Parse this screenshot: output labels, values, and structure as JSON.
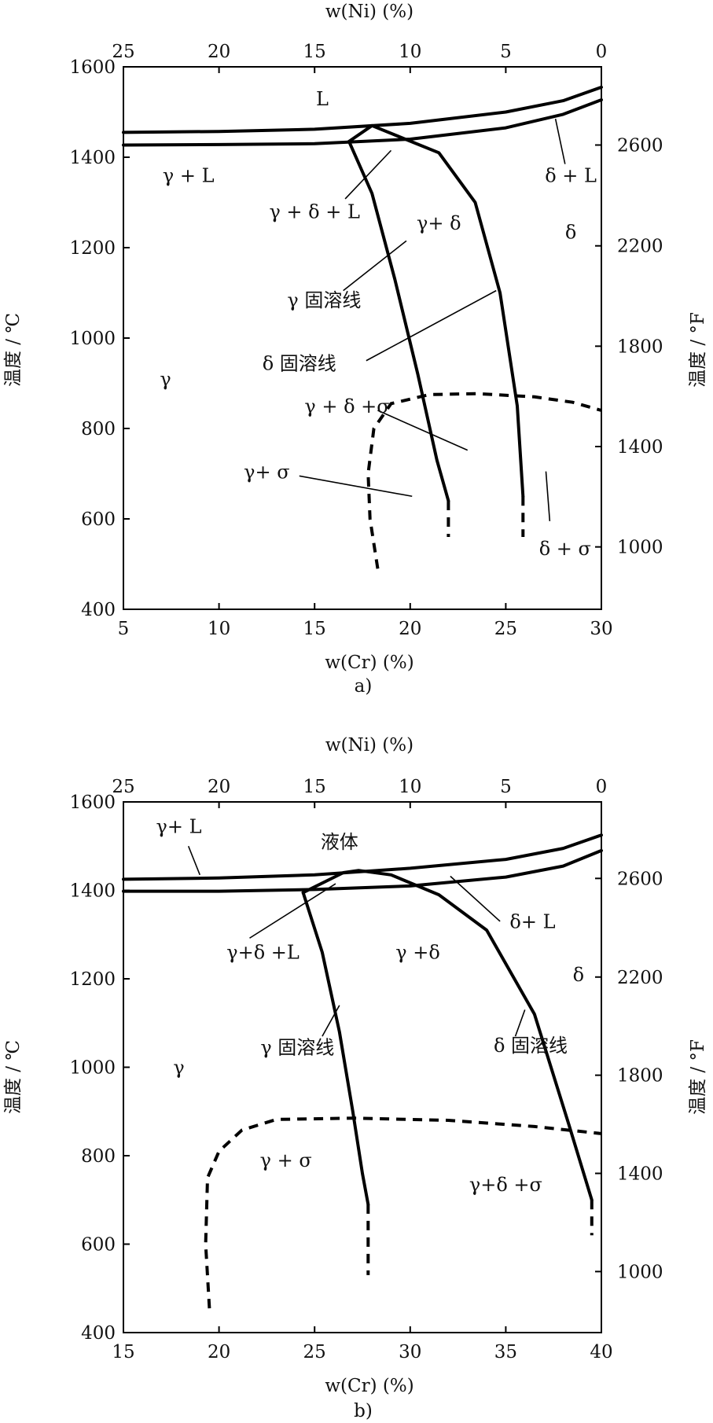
{
  "chart_data": [
    {
      "type": "line",
      "caption": "a)",
      "xlabel": "w(Cr) (%)",
      "x2label": "w(Ni) (%)",
      "ylabel": "温度 / ℃",
      "y2label": "温度 / °F",
      "xlim": [
        5,
        30
      ],
      "ylim": [
        400,
        1600
      ],
      "x_ticks": [
        "5",
        "10",
        "15",
        "20",
        "25",
        "30"
      ],
      "x2_ticks": [
        "25",
        "20",
        "15",
        "10",
        "5",
        "0"
      ],
      "y_ticks": [
        "400",
        "600",
        "800",
        "1000",
        "1200",
        "1400",
        "1600"
      ],
      "y2_ticks": [
        "1000",
        "1400",
        "1800",
        "2200",
        "2600"
      ],
      "y2_tick_values_c": [
        538,
        760,
        982,
        1204,
        1427
      ],
      "series": [
        {
          "style": "solid",
          "x": [
            5,
            10,
            15,
            20,
            25,
            28,
            30
          ],
          "y": [
            1455,
            1457,
            1462,
            1475,
            1500,
            1525,
            1555
          ]
        },
        {
          "style": "solid",
          "x": [
            5,
            10,
            15,
            20,
            25,
            28,
            30
          ],
          "y": [
            1427,
            1428,
            1430,
            1440,
            1465,
            1495,
            1527
          ]
        },
        {
          "style": "solid",
          "x": [
            16.8,
            18.0,
            19.2,
            20.4,
            21.4,
            22.0
          ],
          "y": [
            1435,
            1320,
            1130,
            920,
            730,
            640
          ]
        },
        {
          "style": "solid",
          "x": [
            16.8,
            18.0,
            21.5,
            23.4,
            24.7,
            25.6,
            25.9
          ],
          "y": [
            1435,
            1470,
            1410,
            1300,
            1100,
            850,
            650
          ]
        },
        {
          "style": "dashed",
          "x": [
            18.3,
            17.9,
            17.8,
            18.1,
            19.0,
            21.0,
            23.5,
            26.5,
            28.5,
            30.0
          ],
          "y": [
            490,
            600,
            700,
            800,
            855,
            875,
            877,
            870,
            858,
            840
          ]
        },
        {
          "style": "dashed",
          "x": [
            22.0,
            22.0
          ],
          "y": [
            640,
            560
          ]
        },
        {
          "style": "dashed",
          "x": [
            25.9,
            25.9
          ],
          "y": [
            650,
            560
          ]
        }
      ],
      "annotations": [
        {
          "text": "L",
          "x": 15.4,
          "y": 1515
        },
        {
          "text": "γ + L",
          "x": 8.4,
          "y": 1345
        },
        {
          "text": "γ + δ + L",
          "x": 15.0,
          "y": 1265,
          "leader": [
            [
              16.6,
              1308
            ],
            [
              19.0,
              1415
            ]
          ]
        },
        {
          "text": "γ+ δ",
          "x": 21.5,
          "y": 1240
        },
        {
          "text": "δ + L",
          "x": 28.4,
          "y": 1345,
          "leader": [
            [
              28.1,
              1385
            ],
            [
              27.6,
              1485
            ]
          ]
        },
        {
          "text": "δ",
          "x": 28.4,
          "y": 1220
        },
        {
          "text": "γ  固溶线",
          "x": 15.5,
          "y": 1070,
          "leader": [
            [
              16.5,
              1105
            ],
            [
              19.8,
              1215
            ]
          ]
        },
        {
          "text": "δ  固溶线",
          "x": 14.2,
          "y": 930,
          "leader": [
            [
              17.7,
              950
            ],
            [
              24.5,
              1105
            ]
          ]
        },
        {
          "text": "γ",
          "x": 7.2,
          "y": 895
        },
        {
          "text": "γ + δ +σ",
          "x": 16.7,
          "y": 835,
          "leader": [
            [
              18.3,
              840
            ],
            [
              23.0,
              752
            ]
          ]
        },
        {
          "text": "γ+ σ",
          "x": 12.5,
          "y": 690,
          "leader": [
            [
              14.2,
              695
            ],
            [
              20.1,
              650
            ]
          ]
        },
        {
          "text": "δ + σ",
          "x": 28.1,
          "y": 520,
          "leader": [
            [
              27.1,
              705
            ],
            [
              27.3,
              595
            ]
          ]
        }
      ]
    },
    {
      "type": "line",
      "caption": "b)",
      "xlabel": "w(Cr) (%)",
      "x2label": "w(Ni) (%)",
      "ylabel": "温度 / ℃",
      "y2label": "温度 / °F",
      "xlim": [
        15,
        40
      ],
      "ylim": [
        400,
        1600
      ],
      "x_ticks": [
        "15",
        "20",
        "25",
        "30",
        "35",
        "40"
      ],
      "x2_ticks": [
        "25",
        "20",
        "15",
        "10",
        "5",
        "0"
      ],
      "y_ticks": [
        "400",
        "600",
        "800",
        "1000",
        "1200",
        "1400",
        "1600"
      ],
      "y2_ticks": [
        "1000",
        "1400",
        "1800",
        "2200",
        "2600"
      ],
      "y2_tick_values_c": [
        538,
        760,
        982,
        1204,
        1427
      ],
      "series": [
        {
          "style": "solid",
          "x": [
            15,
            20,
            25,
            30,
            35,
            38,
            40
          ],
          "y": [
            1425,
            1428,
            1435,
            1450,
            1470,
            1495,
            1525
          ]
        },
        {
          "style": "solid",
          "x": [
            15,
            20,
            25,
            30,
            35,
            38,
            40
          ],
          "y": [
            1398,
            1398,
            1402,
            1410,
            1430,
            1455,
            1490
          ]
        },
        {
          "style": "solid",
          "x": [
            24.4,
            25.4,
            26.3,
            27.0,
            27.5,
            27.8
          ],
          "y": [
            1395,
            1260,
            1080,
            900,
            760,
            690
          ]
        },
        {
          "style": "solid",
          "x": [
            24.4,
            26.5,
            27.3,
            29.0,
            31.5,
            34.0,
            36.5,
            38.3,
            39.5
          ],
          "y": [
            1395,
            1440,
            1445,
            1435,
            1390,
            1310,
            1120,
            870,
            700
          ]
        },
        {
          "style": "dashed",
          "x": [
            19.5,
            19.3,
            19.4,
            20.0,
            21.2,
            23.0,
            27.0,
            32.0,
            36.5,
            40.0
          ],
          "y": [
            455,
            600,
            750,
            810,
            858,
            882,
            885,
            880,
            866,
            850
          ]
        },
        {
          "style": "dashed",
          "x": [
            27.8,
            27.8
          ],
          "y": [
            690,
            530
          ]
        },
        {
          "style": "dashed",
          "x": [
            39.5,
            39.5
          ],
          "y": [
            700,
            620
          ]
        }
      ],
      "annotations": [
        {
          "text": "γ+ L",
          "x": 17.9,
          "y": 1530,
          "leader": [
            [
              18.4,
              1500
            ],
            [
              19.0,
              1435
            ]
          ]
        },
        {
          "text": "液体",
          "x": 26.3,
          "y": 1495
        },
        {
          "text": "γ+δ +L",
          "x": 22.3,
          "y": 1245,
          "leader": [
            [
              21.6,
              1292
            ],
            [
              26.1,
              1415
            ]
          ]
        },
        {
          "text": "γ +δ",
          "x": 30.4,
          "y": 1245
        },
        {
          "text": "δ+ L",
          "x": 36.4,
          "y": 1315,
          "leader": [
            [
              34.7,
              1330
            ],
            [
              32.1,
              1432
            ]
          ]
        },
        {
          "text": "δ",
          "x": 38.8,
          "y": 1195
        },
        {
          "text": "γ 固溶线",
          "x": 24.1,
          "y": 1030,
          "leader": [
            [
              25.4,
              1070
            ],
            [
              26.3,
              1140
            ]
          ]
        },
        {
          "text": "δ 固溶线",
          "x": 36.3,
          "y": 1035,
          "leader": [
            [
              35.5,
              1070
            ],
            [
              36.0,
              1130
            ]
          ]
        },
        {
          "text": "γ",
          "x": 17.9,
          "y": 985
        },
        {
          "text": "γ + σ",
          "x": 23.5,
          "y": 775
        },
        {
          "text": "γ+δ +σ",
          "x": 35.0,
          "y": 720
        }
      ]
    }
  ]
}
